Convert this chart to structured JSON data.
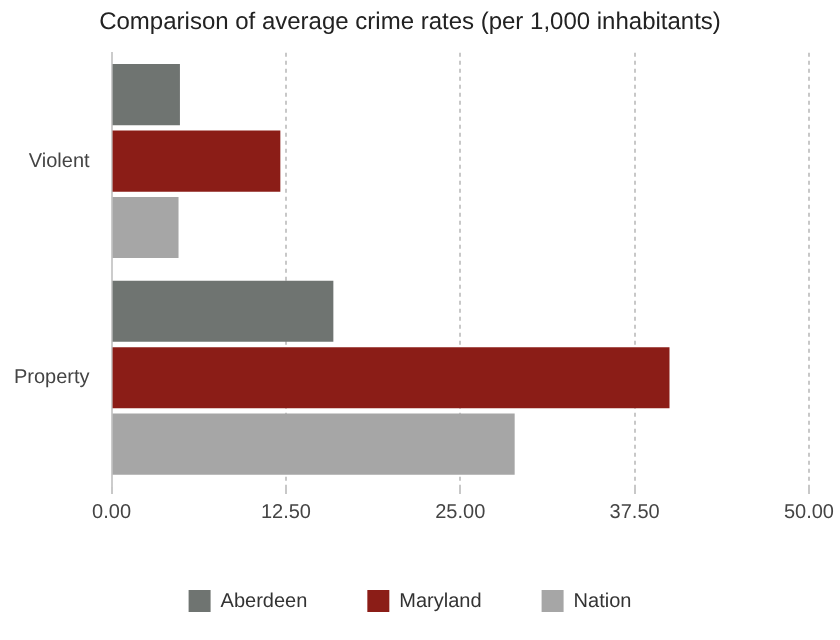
{
  "chart_data": {
    "type": "bar",
    "orientation": "horizontal",
    "title": "Comparison of average crime rates (per 1,000 inhabitants)",
    "categories": [
      "Violent",
      "Property"
    ],
    "series": [
      {
        "name": "Aberdeen",
        "color": "#6f7471",
        "values": [
          4.9,
          15.9
        ]
      },
      {
        "name": "Maryland",
        "color": "#8b1d17",
        "values": [
          12.1,
          40.0
        ]
      },
      {
        "name": "Nation",
        "color": "#a6a6a6",
        "values": [
          4.8,
          28.9
        ]
      }
    ],
    "xlim": [
      0,
      50
    ],
    "xticks": [
      {
        "value": 0,
        "label": "0.00"
      },
      {
        "value": 12.5,
        "label": "12.50"
      },
      {
        "value": 25,
        "label": "25.00"
      },
      {
        "value": 37.5,
        "label": "37.50"
      },
      {
        "value": 50,
        "label": "50.00"
      }
    ],
    "grid": "x",
    "legend": "bottom"
  }
}
